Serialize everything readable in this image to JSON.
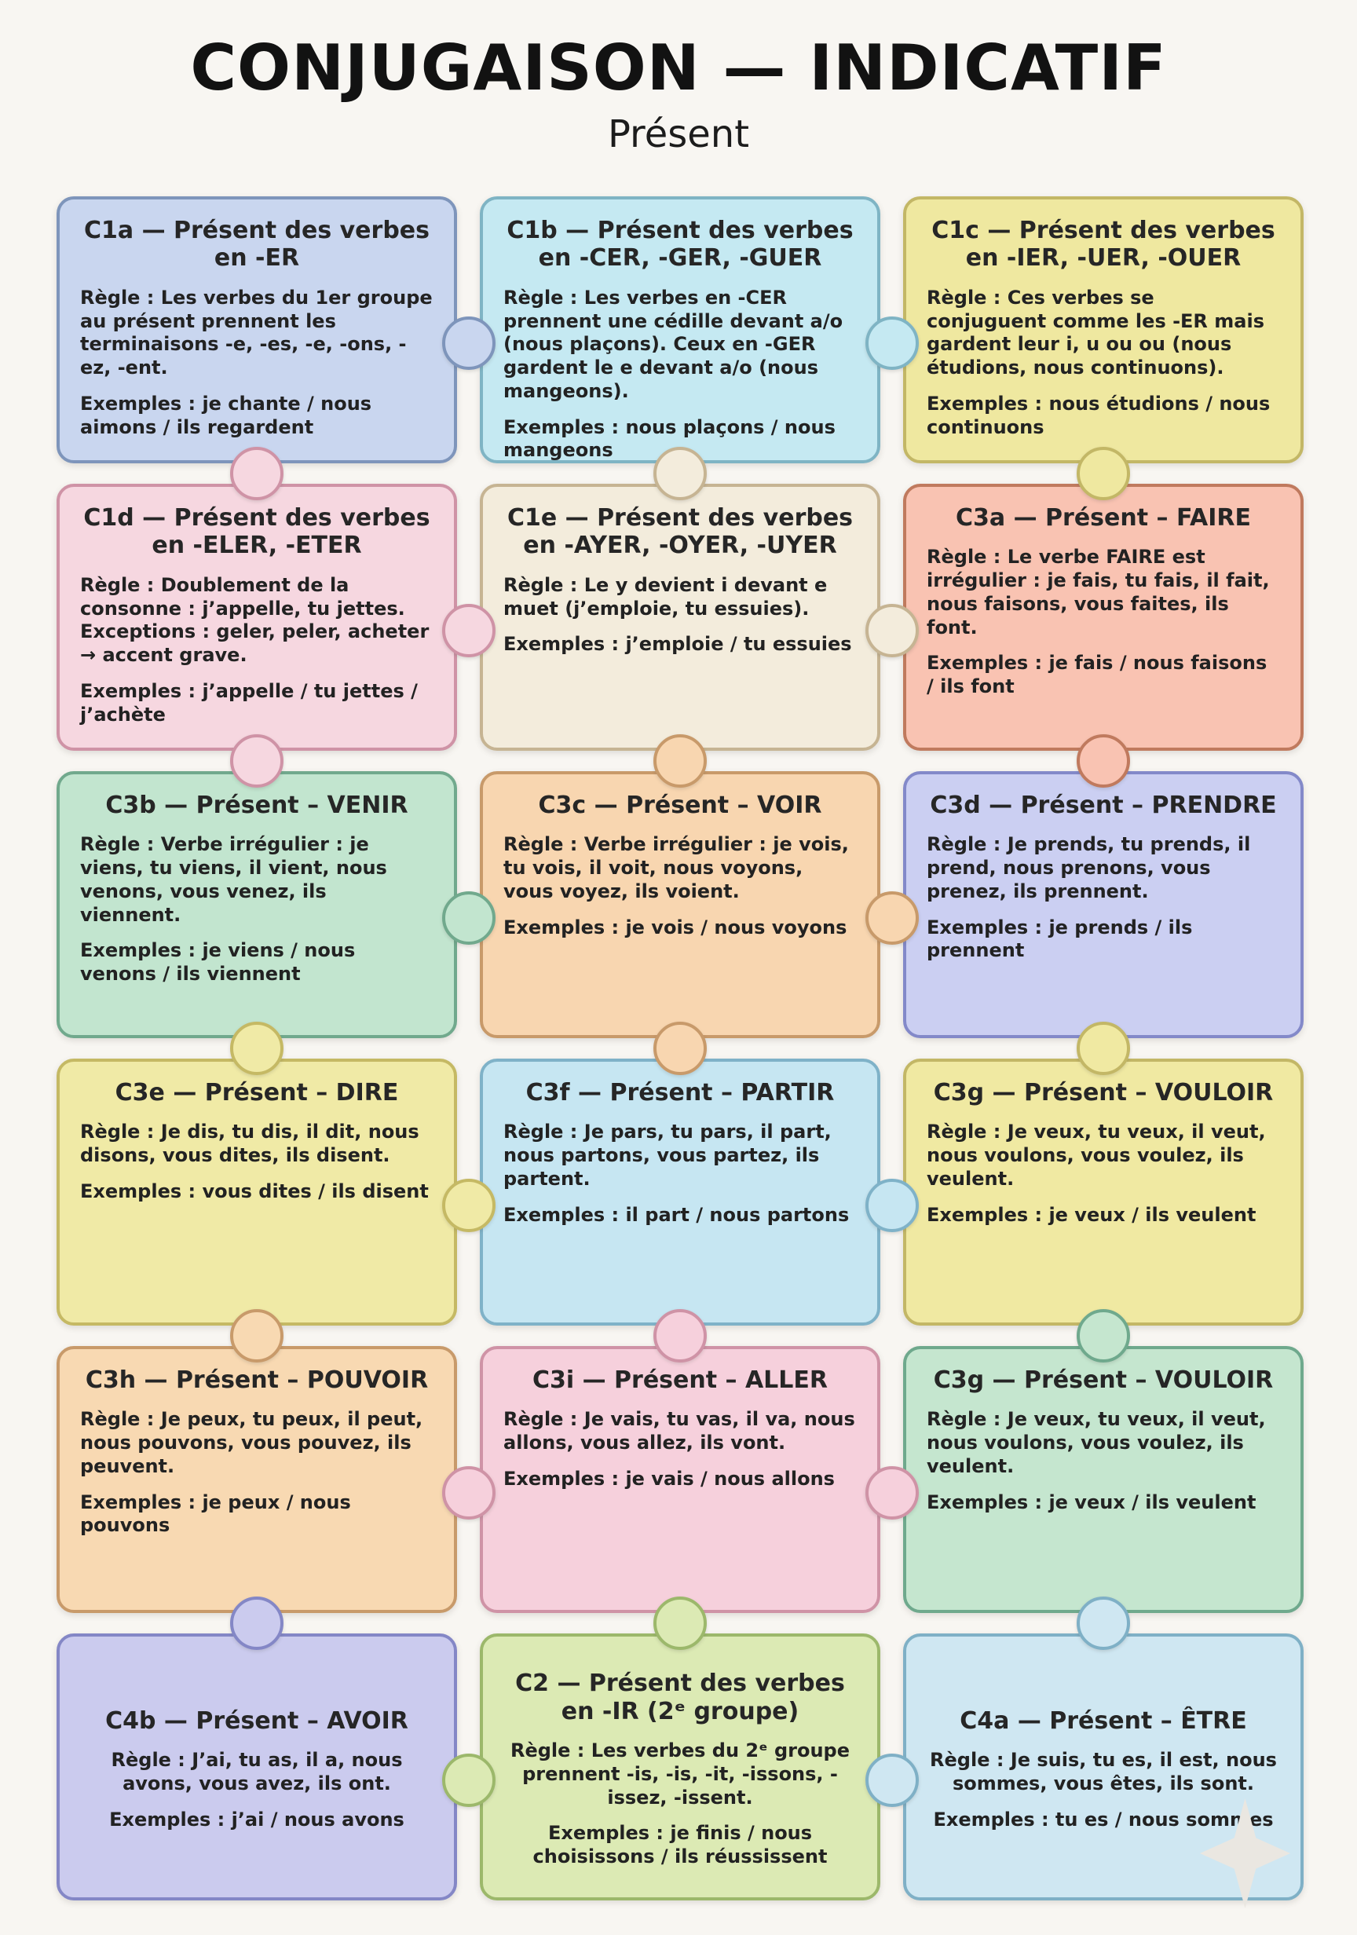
{
  "poster": {
    "title": "CONJUGAISON — INDICATIF",
    "subtitle": "Présent"
  },
  "labels": {
    "rule": "Règle :",
    "examples": "Exemples :"
  },
  "cards": [
    {
      "id": "c1a",
      "title": "C1a — Présent des verbes en -ER",
      "rule": "Les verbes du 1er groupe au présent prennent les terminaisons -e, -es, -e, -ons, -ez, -ent.",
      "examples": "je chante / nous aimons / ils regardent",
      "bg": "#c9d6ef",
      "border": "#7e95bb",
      "align": "left"
    },
    {
      "id": "c1b",
      "title": "C1b — Présent des verbes en -CER, -GER, -GUER",
      "rule": "Les verbes en -CER prennent une cédille devant a/o (nous plaçons). Ceux en -GER gardent le e devant a/o (nous mangeons).",
      "examples": "nous plaçons / nous mangeons",
      "bg": "#c5e9f2",
      "border": "#7fb4c4",
      "align": "left"
    },
    {
      "id": "c1c",
      "title": "C1c — Présent des verbes en -IER, -UER, -OUER",
      "rule": "Ces verbes se conjuguent comme les -ER mais gardent leur i, u ou ou (nous étudions, nous continuons).",
      "examples": "nous étudions / nous continuons",
      "bg": "#efe8a0",
      "border": "#c3b766",
      "align": "left"
    },
    {
      "id": "c1d",
      "title": "C1d — Présent des verbes en -ELER, -ETER",
      "rule": "Doublement de la consonne : j’appelle, tu jettes. Exceptions : geler, peler, acheter → accent grave.",
      "examples": "j’appelle / tu jettes / j’achète",
      "bg": "#f6d7e0",
      "border": "#cf93a6",
      "align": "left"
    },
    {
      "id": "c1e",
      "title": "C1e — Présent des verbes en -AYER, -OYER, -UYER",
      "rule": "Le y devient i devant e muet (j’emploie, tu essuies).",
      "examples": "j’emploie / tu essuies",
      "bg": "#f3ecdc",
      "border": "#c6b493",
      "align": "left"
    },
    {
      "id": "c3a",
      "title": "C3a — Présent – FAIRE",
      "rule": "Le verbe FAIRE est irrégulier : je fais, tu fais, il fait, nous faisons, vous faites, ils font.",
      "examples": "je fais / nous faisons / ils font",
      "bg": "#f9c3b2",
      "border": "#c07a5e",
      "align": "left"
    },
    {
      "id": "c3b",
      "title": "C3b — Présent – VENIR",
      "rule": "Verbe irrégulier : je viens, tu viens, il vient, nous venons, vous venez, ils viennent.",
      "examples": "je viens / nous venons / ils viennent",
      "bg": "#c2e5cf",
      "border": "#71a98d",
      "align": "left"
    },
    {
      "id": "c3c",
      "title": "C3c — Présent – VOIR",
      "rule": "Verbe irrégulier : je vois, tu vois, il voit, nous voyons, vous voyez, ils voient.",
      "examples": "je vois / nous voyons",
      "bg": "#f8d6b0",
      "border": "#c89a6a",
      "align": "left"
    },
    {
      "id": "c3d",
      "title": "C3d — Présent – PRENDRE",
      "rule": "Je prends, tu prends, il prend, nous prenons, vous prenez, ils prennent.",
      "examples": "je prends / ils prennent",
      "bg": "#cbcff2",
      "border": "#8389c9",
      "align": "left"
    },
    {
      "id": "c3e",
      "title": "C3e — Présent – DIRE",
      "rule": "Je dis, tu dis, il dit, nous disons, vous dites, ils disent.",
      "examples": "vous dites / ils disent",
      "bg": "#f0eaa6",
      "border": "#c5b964",
      "align": "left"
    },
    {
      "id": "c3f",
      "title": "C3f — Présent – PARTIR",
      "rule": "Je pars, tu pars, il part, nous partons, vous partez, ils partent.",
      "examples": "il part / nous partons",
      "bg": "#c6e6f2",
      "border": "#7fb2c8",
      "align": "left"
    },
    {
      "id": "c3g",
      "title": "C3g — Présent – VOULOIR",
      "rule": "Je veux, tu veux, il veut, nous voulons, vous voulez, ils veulent.",
      "examples": "je veux / ils veulent",
      "bg": "#f0e9a2",
      "border": "#c3b766",
      "align": "left"
    },
    {
      "id": "c3h",
      "title": "C3h — Présent – POUVOIR",
      "rule": "Je peux, tu peux, il peut, nous pouvons, vous pouvez, ils peuvent.",
      "examples": "je peux / nous pouvons",
      "bg": "#f8d9b2",
      "border": "#c89a6a",
      "align": "left"
    },
    {
      "id": "c3i",
      "title": "C3i — Présent – ALLER",
      "rule": "Je vais, tu vas, il va, nous allons, vous allez, ils vont.",
      "examples": "je vais / nous allons",
      "bg": "#f6d0dc",
      "border": "#cf93a6",
      "align": "left"
    },
    {
      "id": "c3g-2",
      "title": "C3g — Présent – VOULOIR",
      "rule": "Je veux, tu veux, il veut, nous voulons, vous voulez, ils veulent.",
      "examples": "je veux / ils veulent",
      "bg": "#c5e6cf",
      "border": "#6fa98d",
      "align": "left"
    },
    {
      "id": "c4b",
      "title": "C4b — Présent – AVOIR",
      "rule": "J’ai, tu as, il a, nous avons, vous avez, ils ont.",
      "examples": "j’ai / nous avons",
      "bg": "#cbcbee",
      "border": "#8487c6",
      "align": "center"
    },
    {
      "id": "c2",
      "title": "C2 — Présent des verbes en -IR (2ᵉ groupe)",
      "rule": "Les verbes du 2ᵉ groupe prennent -is, -is, -it, -issons, -issez, -issent.",
      "examples": "je finis / nous choisissons / ils réussissent",
      "bg": "#dceab4",
      "border": "#9cb86b",
      "align": "center"
    },
    {
      "id": "c4a",
      "title": "C4a — Présent – ÊTRE",
      "rule": "Je suis, tu es, il est, nous sommes, vous êtes, ils sont.",
      "examples": "tu es / nous sommes",
      "bg": "#cfe7f2",
      "border": "#7fb0c6",
      "align": "center"
    }
  ],
  "connectors": [
    {
      "type": "v",
      "col": 1,
      "boundary": 1,
      "color": "#f6d7e0",
      "border": "#cf93a6"
    },
    {
      "type": "v",
      "col": 1,
      "boundary": 2,
      "color": "#f6d7e0",
      "border": "#cf93a6"
    },
    {
      "type": "v",
      "col": 1,
      "boundary": 3,
      "color": "#f0eaa6",
      "border": "#c5b964"
    },
    {
      "type": "v",
      "col": 1,
      "boundary": 4,
      "color": "#f8d9b2",
      "border": "#c89a6a"
    },
    {
      "type": "v",
      "col": 1,
      "boundary": 5,
      "color": "#cbcbee",
      "border": "#8487c6"
    },
    {
      "type": "v",
      "col": 2,
      "boundary": 1,
      "color": "#f3ecdc",
      "border": "#c6b493"
    },
    {
      "type": "v",
      "col": 2,
      "boundary": 2,
      "color": "#f8d6b0",
      "border": "#c89a6a"
    },
    {
      "type": "v",
      "col": 2,
      "boundary": 3,
      "color": "#f8d6b0",
      "border": "#c89a6a"
    },
    {
      "type": "v",
      "col": 2,
      "boundary": 4,
      "color": "#f6d0dc",
      "border": "#cf93a6"
    },
    {
      "type": "v",
      "col": 2,
      "boundary": 5,
      "color": "#dceab4",
      "border": "#9cb86b"
    },
    {
      "type": "v",
      "col": 3,
      "boundary": 1,
      "color": "#efe8a0",
      "border": "#c3b766"
    },
    {
      "type": "v",
      "col": 3,
      "boundary": 2,
      "color": "#f9c3b2",
      "border": "#c07a5e"
    },
    {
      "type": "v",
      "col": 3,
      "boundary": 3,
      "color": "#f0e9a2",
      "border": "#c3b766"
    },
    {
      "type": "v",
      "col": 3,
      "boundary": 4,
      "color": "#c5e6cf",
      "border": "#6fa98d"
    },
    {
      "type": "v",
      "col": 3,
      "boundary": 5,
      "color": "#cfe7f2",
      "border": "#7fb0c6"
    },
    {
      "type": "h",
      "row": 1,
      "boundary": 1,
      "color": "#c9d6ef",
      "border": "#7e95bb"
    },
    {
      "type": "h",
      "row": 1,
      "boundary": 2,
      "color": "#c5e9f2",
      "border": "#7fb4c4"
    },
    {
      "type": "h",
      "row": 2,
      "boundary": 1,
      "color": "#f6d7e0",
      "border": "#cf93a6"
    },
    {
      "type": "h",
      "row": 2,
      "boundary": 2,
      "color": "#f3ecdc",
      "border": "#c6b493"
    },
    {
      "type": "h",
      "row": 3,
      "boundary": 1,
      "color": "#c2e5cf",
      "border": "#71a98d"
    },
    {
      "type": "h",
      "row": 3,
      "boundary": 2,
      "color": "#f8d6b0",
      "border": "#c89a6a"
    },
    {
      "type": "h",
      "row": 4,
      "boundary": 1,
      "color": "#f0eaa6",
      "border": "#c5b964"
    },
    {
      "type": "h",
      "row": 4,
      "boundary": 2,
      "color": "#c6e6f2",
      "border": "#7fb2c8"
    },
    {
      "type": "h",
      "row": 5,
      "boundary": 1,
      "color": "#f6d0dc",
      "border": "#cf93a6"
    },
    {
      "type": "h",
      "row": 5,
      "boundary": 2,
      "color": "#f6d0dc",
      "border": "#cf93a6"
    },
    {
      "type": "h",
      "row": 6,
      "boundary": 1,
      "color": "#dceab4",
      "border": "#9cb86b"
    },
    {
      "type": "h",
      "row": 6,
      "boundary": 2,
      "color": "#cfe7f2",
      "border": "#7fb0c6"
    }
  ]
}
